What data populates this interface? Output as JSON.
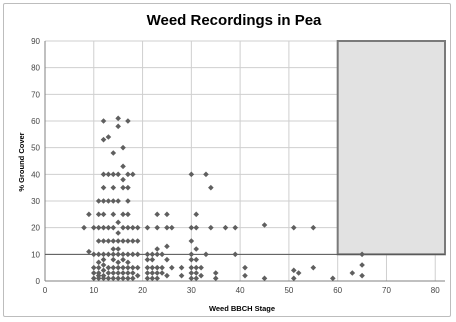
{
  "chart_data": {
    "type": "scatter",
    "title": "Weed Recordings in Pea",
    "xlabel": "Weed BBCH Stage",
    "ylabel": "% Ground Cover",
    "xlim": [
      0,
      82
    ],
    "ylim": [
      0,
      90
    ],
    "x_ticks": [
      0,
      10,
      20,
      30,
      40,
      50,
      60,
      70,
      80
    ],
    "y_ticks": [
      0,
      10,
      20,
      30,
      40,
      50,
      60,
      70,
      80,
      90
    ],
    "grid": true,
    "marker": "diamond",
    "marker_color": "#5f5f5f",
    "shaded_region": {
      "x": [
        60,
        82
      ],
      "y": [
        10,
        90
      ],
      "fill": "#e2e2e2",
      "stroke": "#7a7a7a"
    },
    "reference_line": {
      "y": 10,
      "x": [
        0,
        82
      ],
      "color": "#555555"
    },
    "points": [
      [
        8,
        20
      ],
      [
        9,
        25
      ],
      [
        9,
        11
      ],
      [
        10,
        20
      ],
      [
        10,
        10
      ],
      [
        10,
        5
      ],
      [
        10,
        3
      ],
      [
        10,
        1
      ],
      [
        11,
        30
      ],
      [
        11,
        25
      ],
      [
        11,
        20
      ],
      [
        11,
        15
      ],
      [
        11,
        10
      ],
      [
        11,
        7
      ],
      [
        11,
        5
      ],
      [
        11,
        3
      ],
      [
        11,
        2
      ],
      [
        11,
        1
      ],
      [
        12,
        60
      ],
      [
        12,
        53
      ],
      [
        12,
        40
      ],
      [
        12,
        35
      ],
      [
        12,
        30
      ],
      [
        12,
        25
      ],
      [
        12,
        20
      ],
      [
        12,
        15
      ],
      [
        12,
        10
      ],
      [
        12,
        8
      ],
      [
        12,
        6
      ],
      [
        12,
        4
      ],
      [
        12,
        2
      ],
      [
        12,
        1
      ],
      [
        13,
        54
      ],
      [
        13,
        40
      ],
      [
        13,
        30
      ],
      [
        13,
        20
      ],
      [
        13,
        15
      ],
      [
        13,
        10
      ],
      [
        13,
        5
      ],
      [
        13,
        3
      ],
      [
        13,
        1
      ],
      [
        14,
        48
      ],
      [
        14,
        40
      ],
      [
        14,
        35
      ],
      [
        14,
        30
      ],
      [
        14,
        25
      ],
      [
        14,
        20
      ],
      [
        14,
        15
      ],
      [
        14,
        12
      ],
      [
        14,
        10
      ],
      [
        14,
        8
      ],
      [
        14,
        5
      ],
      [
        14,
        3
      ],
      [
        14,
        1
      ],
      [
        15,
        61
      ],
      [
        15,
        58
      ],
      [
        15,
        40
      ],
      [
        15,
        30
      ],
      [
        15,
        22
      ],
      [
        15,
        18
      ],
      [
        15,
        15
      ],
      [
        15,
        12
      ],
      [
        15,
        10
      ],
      [
        15,
        7
      ],
      [
        15,
        5
      ],
      [
        15,
        3
      ],
      [
        15,
        1
      ],
      [
        16,
        50
      ],
      [
        16,
        43
      ],
      [
        16,
        38
      ],
      [
        16,
        35
      ],
      [
        16,
        25
      ],
      [
        16,
        20
      ],
      [
        16,
        15
      ],
      [
        16,
        10
      ],
      [
        16,
        8
      ],
      [
        16,
        5
      ],
      [
        16,
        3
      ],
      [
        16,
        1
      ],
      [
        17,
        60
      ],
      [
        17,
        40
      ],
      [
        17,
        35
      ],
      [
        17,
        30
      ],
      [
        17,
        25
      ],
      [
        17,
        20
      ],
      [
        17,
        15
      ],
      [
        17,
        10
      ],
      [
        17,
        7
      ],
      [
        17,
        5
      ],
      [
        17,
        3
      ],
      [
        17,
        1
      ],
      [
        18,
        40
      ],
      [
        18,
        20
      ],
      [
        18,
        15
      ],
      [
        18,
        10
      ],
      [
        18,
        5
      ],
      [
        18,
        3
      ],
      [
        18,
        1
      ],
      [
        19,
        20
      ],
      [
        19,
        15
      ],
      [
        19,
        10
      ],
      [
        19,
        5
      ],
      [
        19,
        2
      ],
      [
        21,
        20
      ],
      [
        21,
        10
      ],
      [
        21,
        8
      ],
      [
        21,
        5
      ],
      [
        21,
        3
      ],
      [
        21,
        1
      ],
      [
        22,
        10
      ],
      [
        22,
        8
      ],
      [
        22,
        5
      ],
      [
        22,
        3
      ],
      [
        22,
        1
      ],
      [
        23,
        25
      ],
      [
        23,
        20
      ],
      [
        23,
        12
      ],
      [
        23,
        10
      ],
      [
        23,
        5
      ],
      [
        23,
        3
      ],
      [
        23,
        1
      ],
      [
        24,
        10
      ],
      [
        24,
        5
      ],
      [
        24,
        3
      ],
      [
        25,
        25
      ],
      [
        25,
        20
      ],
      [
        25,
        13
      ],
      [
        25,
        8
      ],
      [
        25,
        2
      ],
      [
        26,
        20
      ],
      [
        26,
        5
      ],
      [
        28,
        5
      ],
      [
        28,
        2
      ],
      [
        30,
        40
      ],
      [
        30,
        20
      ],
      [
        30,
        15
      ],
      [
        30,
        10
      ],
      [
        30,
        8
      ],
      [
        30,
        5
      ],
      [
        30,
        3
      ],
      [
        30,
        1
      ],
      [
        31,
        25
      ],
      [
        31,
        20
      ],
      [
        31,
        12
      ],
      [
        31,
        8
      ],
      [
        31,
        5
      ],
      [
        31,
        3
      ],
      [
        31,
        1
      ],
      [
        32,
        5
      ],
      [
        32,
        2
      ],
      [
        33,
        10
      ],
      [
        33,
        40
      ],
      [
        34,
        35
      ],
      [
        34,
        20
      ],
      [
        35,
        3
      ],
      [
        35,
        1
      ],
      [
        37,
        20
      ],
      [
        39,
        10
      ],
      [
        39,
        20
      ],
      [
        41,
        5
      ],
      [
        41,
        2
      ],
      [
        45,
        21
      ],
      [
        45,
        1
      ],
      [
        51,
        20
      ],
      [
        51,
        4
      ],
      [
        51,
        1
      ],
      [
        52,
        3
      ],
      [
        55,
        5
      ],
      [
        55,
        20
      ],
      [
        59,
        1
      ],
      [
        63,
        3
      ],
      [
        65,
        10
      ],
      [
        65,
        6
      ],
      [
        65,
        2
      ]
    ]
  }
}
